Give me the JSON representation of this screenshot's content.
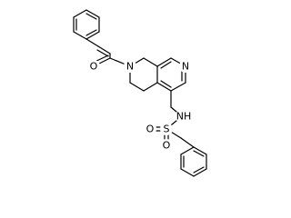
{
  "labels": [
    "O",
    "N",
    "N",
    "NH",
    "O",
    "S",
    "O"
  ]
}
